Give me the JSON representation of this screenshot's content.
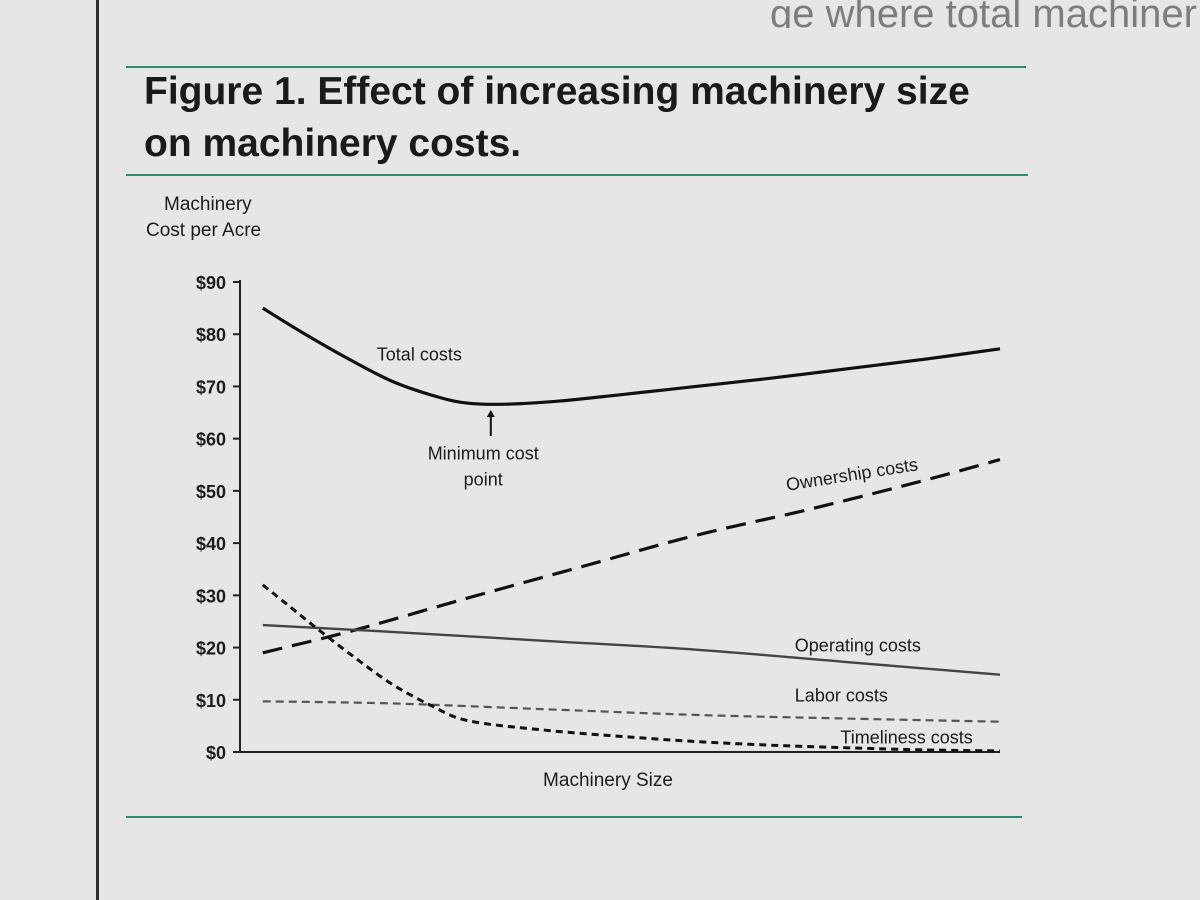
{
  "page": {
    "partial_heading": "ge where total machiner",
    "figure_title": "Figure 1. Effect of increasing machinery size on machinery costs."
  },
  "chart_data": {
    "type": "line",
    "title": "Figure 1. Effect of increasing machinery size on machinery costs.",
    "ylabel_lines": [
      "Machinery",
      "Cost per Acre"
    ],
    "xlabel": "Machinery Size",
    "ylim": [
      0,
      90
    ],
    "y_ticks": [
      0,
      10,
      20,
      30,
      40,
      50,
      60,
      70,
      80,
      90
    ],
    "y_tick_labels": [
      "$0",
      "$10",
      "$20",
      "$30",
      "$40",
      "$50",
      "$60",
      "$70",
      "$80",
      "$90"
    ],
    "x_range": [
      0,
      100
    ],
    "grid": false,
    "legend": "none",
    "series": [
      {
        "name": "Total costs",
        "style": "solid-thick",
        "x": [
          3,
          8,
          14,
          20,
          26,
          30,
          35,
          42,
          50,
          60,
          70,
          80,
          90,
          100
        ],
        "values": [
          85,
          80.5,
          75.5,
          71,
          68,
          66.8,
          66.6,
          67.2,
          68.4,
          70,
          71.6,
          73.4,
          75.2,
          77.2
        ]
      },
      {
        "name": "Ownership costs",
        "style": "dashed-long",
        "x": [
          3,
          15,
          30,
          45,
          60,
          75,
          90,
          100
        ],
        "values": [
          19,
          23.3,
          29.5,
          35.5,
          41.5,
          46.5,
          52,
          56
        ]
      },
      {
        "name": "Operating costs",
        "style": "solid-thin",
        "x": [
          3,
          20,
          40,
          60,
          80,
          100
        ],
        "values": [
          24.3,
          23,
          21.3,
          19.6,
          17.2,
          14.8
        ]
      },
      {
        "name": "Labor costs",
        "style": "dashed-short-gray",
        "x": [
          3,
          20,
          40,
          60,
          80,
          100
        ],
        "values": [
          9.7,
          9.3,
          8.2,
          7.1,
          6.4,
          5.8
        ]
      },
      {
        "name": "Timeliness costs",
        "style": "dashed-short-black",
        "x": [
          3,
          6,
          10,
          15,
          20,
          25,
          30,
          40,
          50,
          60,
          70,
          80,
          90,
          100
        ],
        "values": [
          32,
          28.5,
          23.8,
          18.2,
          13,
          9,
          6,
          4.2,
          3,
          2,
          1.3,
          0.8,
          0.4,
          0.2
        ]
      }
    ],
    "annotations": [
      {
        "text": "Total costs",
        "x": 18,
        "y": 75
      },
      {
        "text": "Minimum cost",
        "x": 32,
        "y": 56
      },
      {
        "text": "point",
        "x": 32,
        "y": 51
      },
      {
        "text": "Ownership costs",
        "x": 72,
        "y": 50
      },
      {
        "text": "Operating costs",
        "x": 73,
        "y": 19.2
      },
      {
        "text": "Labor costs",
        "x": 73,
        "y": 9.7
      },
      {
        "text": "Timeliness costs",
        "x": 79,
        "y": 1.6
      }
    ],
    "min_cost_arrow": {
      "x": 33,
      "y_from": 60.5,
      "y_to": 65.5
    }
  }
}
